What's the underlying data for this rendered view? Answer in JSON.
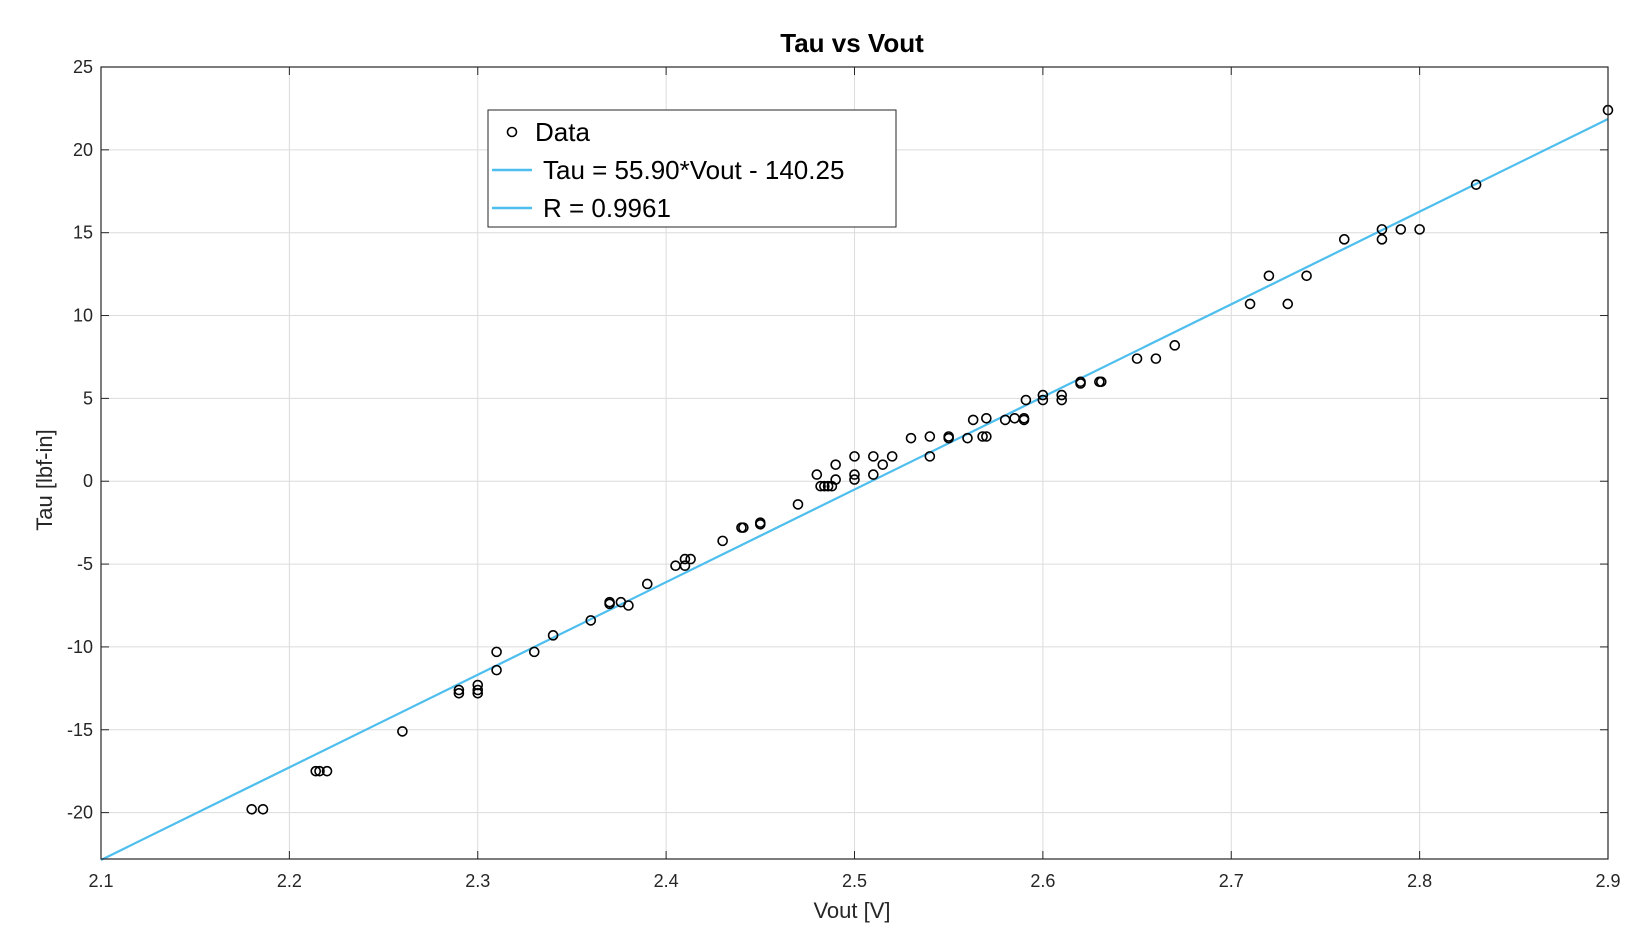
{
  "chart_data": {
    "type": "scatter",
    "title": "Tau vs Vout",
    "xlabel": "Vout [V]",
    "ylabel": "Tau [lbf-in]",
    "xlim": [
      2.1,
      2.9
    ],
    "ylim": [
      -22.8,
      25
    ],
    "xticks": [
      2.1,
      2.2,
      2.3,
      2.4,
      2.5,
      2.6,
      2.7,
      2.8,
      2.9
    ],
    "yticks": [
      -20,
      -15,
      -10,
      -5,
      0,
      5,
      10,
      15,
      20,
      25
    ],
    "xtick_labels": [
      "2.1",
      "2.2",
      "2.3",
      "2.4",
      "2.5",
      "2.6",
      "2.7",
      "2.8",
      "2.9"
    ],
    "ytick_labels": [
      "-20",
      "-15",
      "-10",
      "-5",
      "0",
      "5",
      "10",
      "15",
      "20",
      "25"
    ],
    "grid": true,
    "legend_position": "top-left",
    "series": [
      {
        "name": "Data",
        "kind": "scatter",
        "marker": "open-circle",
        "color": "#000000",
        "points": [
          [
            2.18,
            -19.8
          ],
          [
            2.186,
            -19.8
          ],
          [
            2.214,
            -17.5
          ],
          [
            2.216,
            -17.5
          ],
          [
            2.22,
            -17.5
          ],
          [
            2.26,
            -15.1
          ],
          [
            2.29,
            -12.6
          ],
          [
            2.29,
            -12.8
          ],
          [
            2.3,
            -12.3
          ],
          [
            2.3,
            -12.6
          ],
          [
            2.3,
            -12.8
          ],
          [
            2.31,
            -10.3
          ],
          [
            2.31,
            -11.4
          ],
          [
            2.33,
            -10.3
          ],
          [
            2.34,
            -9.3
          ],
          [
            2.36,
            -8.4
          ],
          [
            2.37,
            -7.3
          ],
          [
            2.37,
            -7.4
          ],
          [
            2.376,
            -7.3
          ],
          [
            2.38,
            -7.5
          ],
          [
            2.39,
            -6.2
          ],
          [
            2.405,
            -5.1
          ],
          [
            2.41,
            -5.1
          ],
          [
            2.41,
            -4.7
          ],
          [
            2.413,
            -4.7
          ],
          [
            2.43,
            -3.6
          ],
          [
            2.44,
            -2.8
          ],
          [
            2.441,
            -2.8
          ],
          [
            2.45,
            -2.6
          ],
          [
            2.45,
            -2.5
          ],
          [
            2.47,
            -1.4
          ],
          [
            2.48,
            0.4
          ],
          [
            2.482,
            -0.3
          ],
          [
            2.484,
            -0.3
          ],
          [
            2.486,
            -0.3
          ],
          [
            2.488,
            -0.3
          ],
          [
            2.49,
            1.0
          ],
          [
            2.49,
            0.1
          ],
          [
            2.5,
            0.4
          ],
          [
            2.5,
            0.1
          ],
          [
            2.5,
            1.5
          ],
          [
            2.51,
            0.4
          ],
          [
            2.51,
            1.5
          ],
          [
            2.515,
            1.0
          ],
          [
            2.52,
            1.5
          ],
          [
            2.53,
            2.6
          ],
          [
            2.54,
            1.5
          ],
          [
            2.54,
            2.7
          ],
          [
            2.55,
            2.7
          ],
          [
            2.55,
            2.6
          ],
          [
            2.56,
            2.6
          ],
          [
            2.563,
            3.7
          ],
          [
            2.568,
            2.7
          ],
          [
            2.57,
            2.7
          ],
          [
            2.57,
            3.8
          ],
          [
            2.58,
            3.7
          ],
          [
            2.585,
            3.8
          ],
          [
            2.59,
            3.7
          ],
          [
            2.59,
            3.8
          ],
          [
            2.591,
            4.9
          ],
          [
            2.6,
            4.9
          ],
          [
            2.6,
            5.2
          ],
          [
            2.61,
            4.9
          ],
          [
            2.61,
            5.2
          ],
          [
            2.62,
            5.9
          ],
          [
            2.62,
            6.0
          ],
          [
            2.63,
            6.0
          ],
          [
            2.631,
            6.0
          ],
          [
            2.65,
            7.4
          ],
          [
            2.66,
            7.4
          ],
          [
            2.67,
            8.2
          ],
          [
            2.71,
            10.7
          ],
          [
            2.72,
            12.4
          ],
          [
            2.73,
            10.7
          ],
          [
            2.74,
            12.4
          ],
          [
            2.76,
            14.6
          ],
          [
            2.78,
            15.2
          ],
          [
            2.78,
            14.6
          ],
          [
            2.79,
            15.2
          ],
          [
            2.8,
            15.2
          ],
          [
            2.83,
            17.9
          ],
          [
            2.9,
            22.4
          ]
        ]
      },
      {
        "name": "Tau = 55.90*Vout - 140.25",
        "kind": "line",
        "color": "#4DBEEE",
        "slope": 55.9,
        "intercept": -140.25
      },
      {
        "name": "R = 0.9961",
        "kind": "line",
        "color": "#4DBEEE",
        "legend_only": true
      }
    ]
  }
}
